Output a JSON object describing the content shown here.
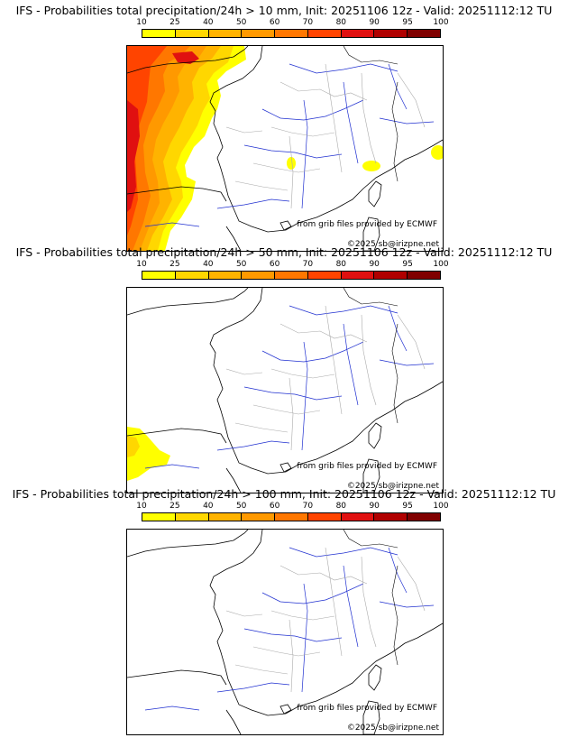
{
  "panels": [
    {
      "title": "IFS - Probabilities total precipitation/24h > 10 mm, Init: 20251106 12z - Valid: 20251112:12 TU",
      "threshold_mm": 10,
      "credit_source": "from grib files provided by ECMWF",
      "credit_copyright": "©2025 sb@irizpne.net"
    },
    {
      "title": "IFS - Probabilities total precipitation/24h > 50 mm, Init: 20251106 12z - Valid: 20251112:12 TU",
      "threshold_mm": 50,
      "credit_source": "from grib files provided by ECMWF",
      "credit_copyright": "©2025 sb@irizpne.net"
    },
    {
      "title": "IFS - Probabilities total precipitation/24h > 100 mm, Init: 20251106 12z - Valid: 20251112:12 TU",
      "threshold_mm": 100,
      "credit_source": "from grib files provided by ECMWF",
      "credit_copyright": "©2025 sb@irizpne.net"
    }
  ],
  "scale": {
    "labels": [
      "10",
      "25",
      "40",
      "50",
      "60",
      "70",
      "80",
      "90",
      "95",
      "100"
    ],
    "colors": [
      "#ffff00",
      "#ffd700",
      "#ffb300",
      "#ff9900",
      "#ff7700",
      "#ff4400",
      "#e01010",
      "#b00000",
      "#800000",
      "#500000"
    ]
  },
  "styles": {
    "coast_color": "#000000",
    "river_color": "#2030d0",
    "border_color": "#aaaaaa"
  }
}
